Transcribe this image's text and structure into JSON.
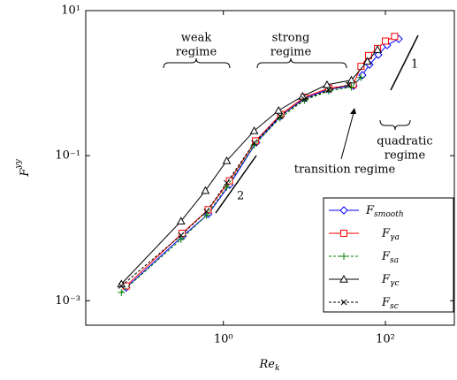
{
  "chart_data": {
    "type": "line",
    "log_x": true,
    "log_y": true,
    "xlabel": "Rek",
    "ylabel": "Fyy",
    "xlim": [
      0.02,
      710
    ],
    "ylim": [
      0.00046,
      10
    ],
    "xticks": [
      {
        "value": 1,
        "label": "10⁰"
      },
      {
        "value": 100,
        "label": "10²"
      }
    ],
    "yticks": [
      {
        "value": 0.001,
        "label": "10⁻³"
      },
      {
        "value": 0.1,
        "label": "10⁻¹"
      },
      {
        "value": 10,
        "label": "10¹"
      }
    ],
    "legend": "lower right",
    "annotations": [
      "weak",
      "regime",
      "strong",
      "regime",
      "quadratic",
      "regime",
      "transition regime",
      "1",
      "2"
    ],
    "series": [
      {
        "name": "Fsmooth",
        "color": "#0000ff",
        "marker": "diamond",
        "dash": false,
        "x": [
          0.063,
          0.314,
          0.652,
          1.19,
          2.54,
          5.13,
          10.1,
          20.0,
          40.4,
          52.0,
          63.6,
          81.8,
          105,
          146
        ],
        "values": [
          0.00152,
          0.00776,
          0.0157,
          0.0396,
          0.152,
          0.354,
          0.621,
          0.822,
          0.918,
          1.29,
          1.8,
          2.46,
          3.34,
          4.07
        ]
      },
      {
        "name": "Fγa",
        "color": "#ff0000",
        "marker": "square",
        "dash": false,
        "x": [
          0.063,
          0.31,
          0.65,
          1.19,
          2.5,
          5.1,
          10,
          20,
          40,
          50,
          62,
          80,
          100,
          130
        ],
        "values": [
          0.0016,
          0.0085,
          0.018,
          0.045,
          0.16,
          0.37,
          0.64,
          0.85,
          0.95,
          1.7,
          2.4,
          3.0,
          3.8,
          4.4
        ]
      },
      {
        "name": "Fsa",
        "color": "#008000",
        "marker": "plus",
        "dash": true,
        "x": [
          0.055,
          0.3,
          0.62,
          1.1,
          2.4,
          5,
          10,
          20,
          38,
          50
        ],
        "values": [
          0.0013,
          0.007,
          0.015,
          0.037,
          0.14,
          0.33,
          0.58,
          0.78,
          0.88,
          1.2
        ]
      },
      {
        "name": "Fγc",
        "color": "#000000",
        "marker": "triangle",
        "dash": false,
        "x": [
          0.055,
          0.3,
          0.6,
          1.1,
          2.4,
          4.8,
          9.5,
          19,
          38,
          60,
          80
        ],
        "values": [
          0.0017,
          0.0125,
          0.033,
          0.085,
          0.22,
          0.42,
          0.66,
          0.95,
          1.1,
          2.0,
          2.9
        ]
      },
      {
        "name": "Fsc",
        "color": "#000000",
        "marker": "cross",
        "dash": true,
        "x": [
          0.055,
          0.3,
          0.62,
          1.1,
          2.4,
          5,
          10,
          20,
          35
        ],
        "values": [
          0.0016,
          0.008,
          0.017,
          0.042,
          0.15,
          0.35,
          0.6,
          0.8,
          0.95
        ]
      }
    ]
  }
}
